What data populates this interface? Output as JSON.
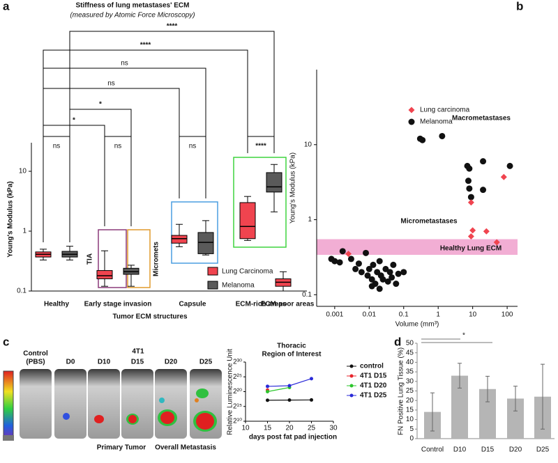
{
  "chart_data": [
    {
      "type": "box",
      "panel_label": "a",
      "title": "Stiffness of lung metastases' ECM",
      "subtitle": "(measured by Atomic Force Microscopy)",
      "y_label": "Young's Modulus (kPa)",
      "x_label": "Tumor ECM structures",
      "categories": [
        "Healthy",
        "Early stage invasion",
        "Capsule",
        "ECM-rich areas",
        "ECM-poor areas"
      ],
      "series": [
        {
          "name": "Lung Carcinoma",
          "color": "#f0444f",
          "values": [
            [
              0.33,
              0.37,
              0.41,
              0.45,
              0.5
            ],
            [
              0.12,
              0.16,
              0.18,
              0.22,
              0.47
            ],
            [
              0.55,
              0.63,
              0.75,
              0.85,
              1.3
            ],
            [
              0.7,
              0.75,
              1.2,
              3.0,
              3.8
            ],
            [
              0.1,
              0.12,
              0.14,
              0.16,
              0.21
            ]
          ]
        },
        {
          "name": "Melanoma",
          "color": "#5a5a5a",
          "values": [
            [
              0.33,
              0.37,
              0.41,
              0.46,
              0.56
            ],
            [
              0.12,
              0.19,
              0.21,
              0.24,
              0.27
            ],
            [
              0.4,
              0.42,
              0.65,
              0.95,
              1.5
            ],
            [
              2.1,
              4.5,
              5.5,
              9.5,
              13
            ],
            null
          ]
        }
      ],
      "y_scale": "log",
      "ylim": [
        0.1,
        30
      ],
      "yticks": [
        0.1,
        1,
        10
      ],
      "significance": [
        "****",
        "****",
        "ns",
        "ns",
        "*",
        "*",
        "ns",
        "ns",
        "ns",
        "****"
      ],
      "region_labels": [
        {
          "text": "TIA",
          "color": "#8b3a7a"
        },
        {
          "text": "Micromets",
          "color": "#e09a2c"
        }
      ],
      "region_colors": [
        "#8b3a7a",
        "#e09a2c",
        "#4a9ee0",
        "#3fd43f"
      ]
    },
    {
      "type": "scatter",
      "panel_label": "b",
      "y_label": "Young's Modulus (kPa)",
      "x_label": "Volume (mm³)",
      "x_scale": "log",
      "y_scale": "log",
      "xlim": [
        0.0003,
        200
      ],
      "xticks": [
        0.001,
        0.01,
        0.1,
        1,
        10,
        100
      ],
      "ylim": [
        0.07,
        100
      ],
      "yticks": [
        0.1,
        1,
        10
      ],
      "band": [
        0.34,
        0.55
      ],
      "band_color": "#f0a0cc",
      "annotations": [
        {
          "text": "Macrometastases",
          "color": "#3fd43f"
        },
        {
          "text": "Micrometastases",
          "color": "#e09a2c"
        },
        {
          "text": "Healthy Lung ECM",
          "color": "#e0559a"
        }
      ],
      "series": [
        {
          "name": "Lung carcinoma",
          "color": "#f0444f",
          "marker": "diamond",
          "x": [
            0.0025,
            9,
            10,
            9,
            25,
            50,
            80
          ],
          "values": [
            0.35,
            0.6,
            0.72,
            1.7,
            0.7,
            0.5,
            3.7
          ]
        },
        {
          "name": "Melanoma",
          "color": "#111111",
          "marker": "circle",
          "x": [
            0.0008,
            0.001,
            0.0014,
            0.003,
            0.004,
            0.005,
            0.006,
            0.008,
            0.009,
            0.01,
            0.012,
            0.013,
            0.015,
            0.017,
            0.02,
            0.022,
            0.025,
            0.03,
            0.035,
            0.04,
            0.045,
            0.05,
            0.06,
            0.07,
            0.1,
            0.012,
            0.02,
            0.3,
            0.35,
            1.3,
            7,
            8,
            7.5,
            8,
            9,
            20,
            20,
            120,
            0.0017
          ],
          "values": [
            0.3,
            0.28,
            0.27,
            0.3,
            0.22,
            0.26,
            0.2,
            0.36,
            0.18,
            0.22,
            0.16,
            0.25,
            0.14,
            0.2,
            0.28,
            0.18,
            0.16,
            0.22,
            0.15,
            0.2,
            0.17,
            0.25,
            0.14,
            0.19,
            0.2,
            0.13,
            0.12,
            12,
            11.5,
            13,
            5.2,
            4.8,
            3.3,
            2.6,
            2.0,
            6,
            2.5,
            5.2,
            0.38
          ]
        }
      ]
    },
    {
      "type": "line",
      "panel_label": "c",
      "title": [
        "Thoracic",
        "Region of Interest"
      ],
      "y_label": "Relative Luminescence Unit",
      "x_label": "days post fat pad injection",
      "x_scale": "linear",
      "y_scale": "log",
      "x": [
        15,
        20,
        25
      ],
      "xlim": [
        10,
        30
      ],
      "xticks": [
        10,
        15,
        20,
        25,
        30
      ],
      "ylim": [
        1024,
        1073741824
      ],
      "yticks": [
        {
          "value": 1024,
          "label": "2¹⁰"
        },
        {
          "value": 32768,
          "label": "2¹⁵"
        },
        {
          "value": 1048576,
          "label": "2²⁰"
        },
        {
          "value": 33554432,
          "label": "2²⁵"
        },
        {
          "value": 1073741824,
          "label": "2³⁰"
        }
      ],
      "series": [
        {
          "name": "control",
          "color": "#111111",
          "values": [
            140000,
            145000,
            150000
          ]
        },
        {
          "name": "4T1 D15",
          "color": "#e8242c",
          "values": [
            1500000,
            null,
            null
          ]
        },
        {
          "name": "4T1 D20",
          "color": "#2cc62c",
          "values": [
            1050000,
            2800000,
            null
          ]
        },
        {
          "name": "4T1 D25",
          "color": "#2a2ad8",
          "values": [
            3600000,
            4200000,
            22000000
          ]
        }
      ]
    },
    {
      "type": "bar",
      "panel_label": "d",
      "y_label": "FN Positive Lung Tissue (%)",
      "categories": [
        "Control",
        "D10",
        "D15",
        "D20",
        "D25"
      ],
      "values": [
        14,
        33,
        26,
        21,
        22
      ],
      "errors": [
        10,
        6.5,
        6.7,
        6.5,
        17
      ],
      "color": "#b5b5b5",
      "y_scale": "linear",
      "ylim": [
        0,
        50
      ],
      "yticks": [
        0,
        5,
        10,
        15,
        20,
        25,
        30,
        35,
        40,
        45,
        50
      ],
      "significance": "*"
    }
  ],
  "image_panel": {
    "group_label": "4T1",
    "mice": [
      [
        "Control",
        "(PBS)"
      ],
      [
        "D0"
      ],
      [
        "D10"
      ],
      [
        "D15"
      ],
      [
        "D20"
      ],
      [
        "D25"
      ]
    ],
    "captions": [
      "Primary Tumor",
      "Overall Metastasis"
    ]
  }
}
